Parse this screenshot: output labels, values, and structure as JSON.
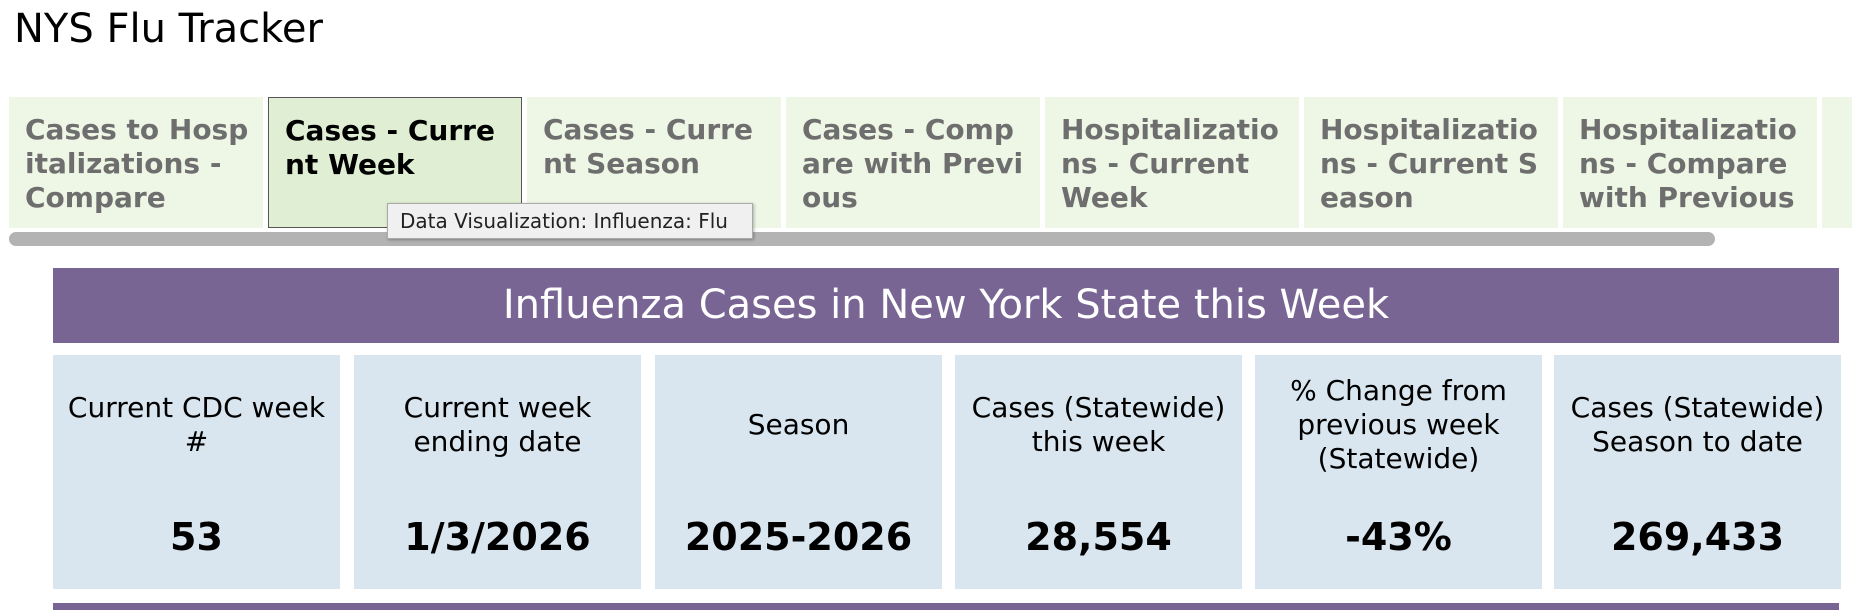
{
  "header": {
    "title": "NYS Flu Tracker"
  },
  "tabs": [
    {
      "label": "Cases to Hospitalizations - Compare",
      "selected": false
    },
    {
      "label": "Cases - Current Week",
      "selected": true
    },
    {
      "label": "Cases - Current Season",
      "selected": false
    },
    {
      "label": "Cases - Compare with Previous",
      "selected": false
    },
    {
      "label": "Hospitalizations - Current Week",
      "selected": false
    },
    {
      "label": "Hospitalizations - Current Season",
      "selected": false
    },
    {
      "label": "Hospitalizations - Compare with Previous",
      "selected": false
    }
  ],
  "tooltip": "Data Visualization: Influenza: Flu",
  "banner": "Influenza Cases in New York State this Week",
  "cards": [
    {
      "label": "Current CDC week #",
      "value": "53"
    },
    {
      "label": "Current week ending date",
      "value": "1/3/2026"
    },
    {
      "label": "Season",
      "value": "2025-2026"
    },
    {
      "label": "Cases (Statewide) this week",
      "value": "28,554"
    },
    {
      "label": "% Change from previous week (Statewide)",
      "value": "-43%"
    },
    {
      "label": "Cases (Statewide) Season to date",
      "value": "269,433"
    }
  ]
}
